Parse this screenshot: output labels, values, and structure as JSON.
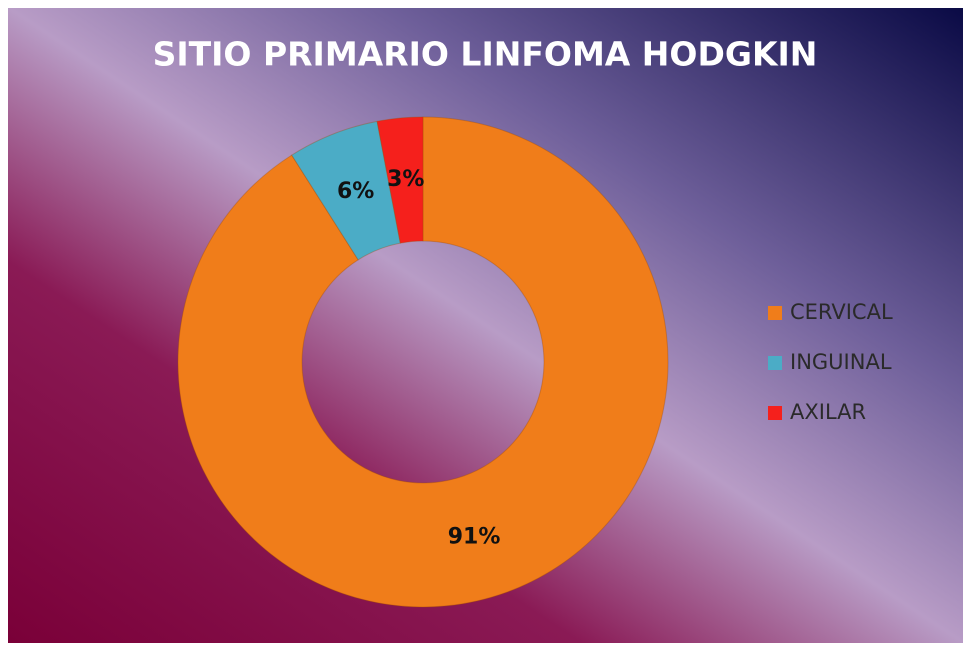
{
  "chart_data": {
    "type": "donut",
    "title": "SITIO PRIMARIO LINFOMA HODGKIN",
    "categories": [
      "CERVICAL",
      "INGUINAL",
      "AXILAR"
    ],
    "values": [
      91,
      6,
      3
    ],
    "value_labels": [
      "91%",
      "6%",
      "3%"
    ],
    "colors": [
      "#f07d1a",
      "#4bacc6",
      "#f5201c"
    ],
    "legend": "right"
  }
}
